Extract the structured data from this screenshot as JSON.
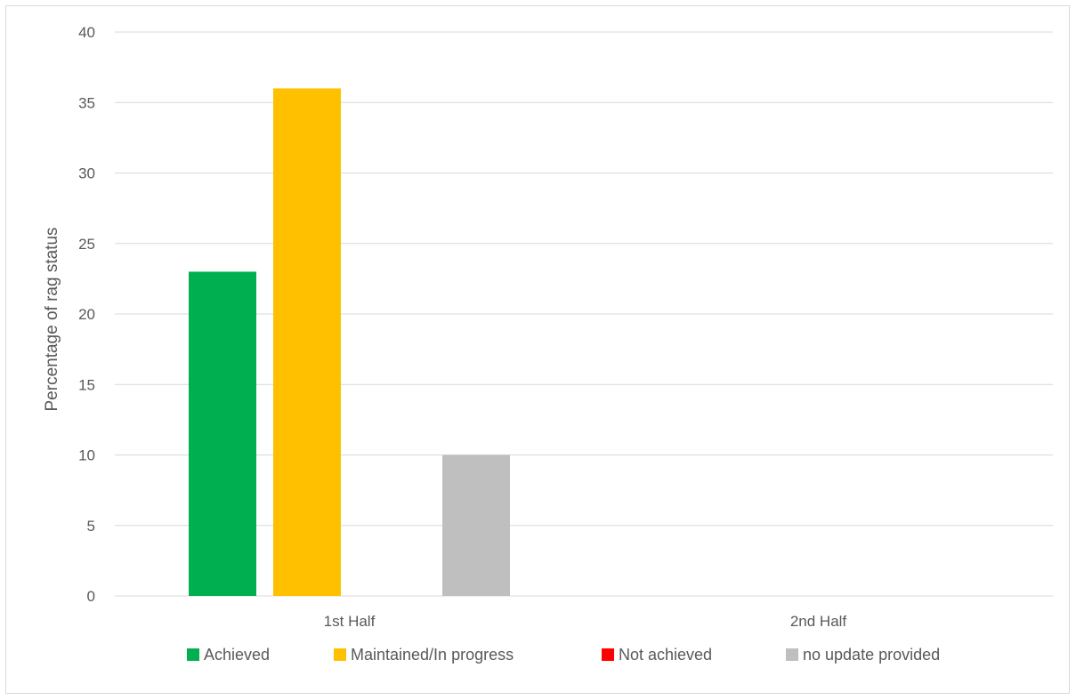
{
  "chart_data": {
    "type": "bar",
    "categories": [
      "1st Half",
      "2nd Half"
    ],
    "series": [
      {
        "name": "Achieved",
        "color": "#00b050",
        "values": [
          23,
          0
        ]
      },
      {
        "name": "Maintained/In progress",
        "color": "#ffc000",
        "values": [
          36,
          0
        ]
      },
      {
        "name": "Not achieved",
        "color": "#ff0000",
        "values": [
          0,
          0
        ]
      },
      {
        "name": "no update provided",
        "color": "#bfbfbf",
        "values": [
          10,
          0
        ]
      }
    ],
    "title": "",
    "xlabel": "",
    "ylabel": "Percentage of rag status",
    "ylim": [
      0,
      40
    ],
    "yticks": [
      0,
      5,
      10,
      15,
      20,
      25,
      30,
      35,
      40
    ],
    "grid": true,
    "legend": "bottom"
  }
}
